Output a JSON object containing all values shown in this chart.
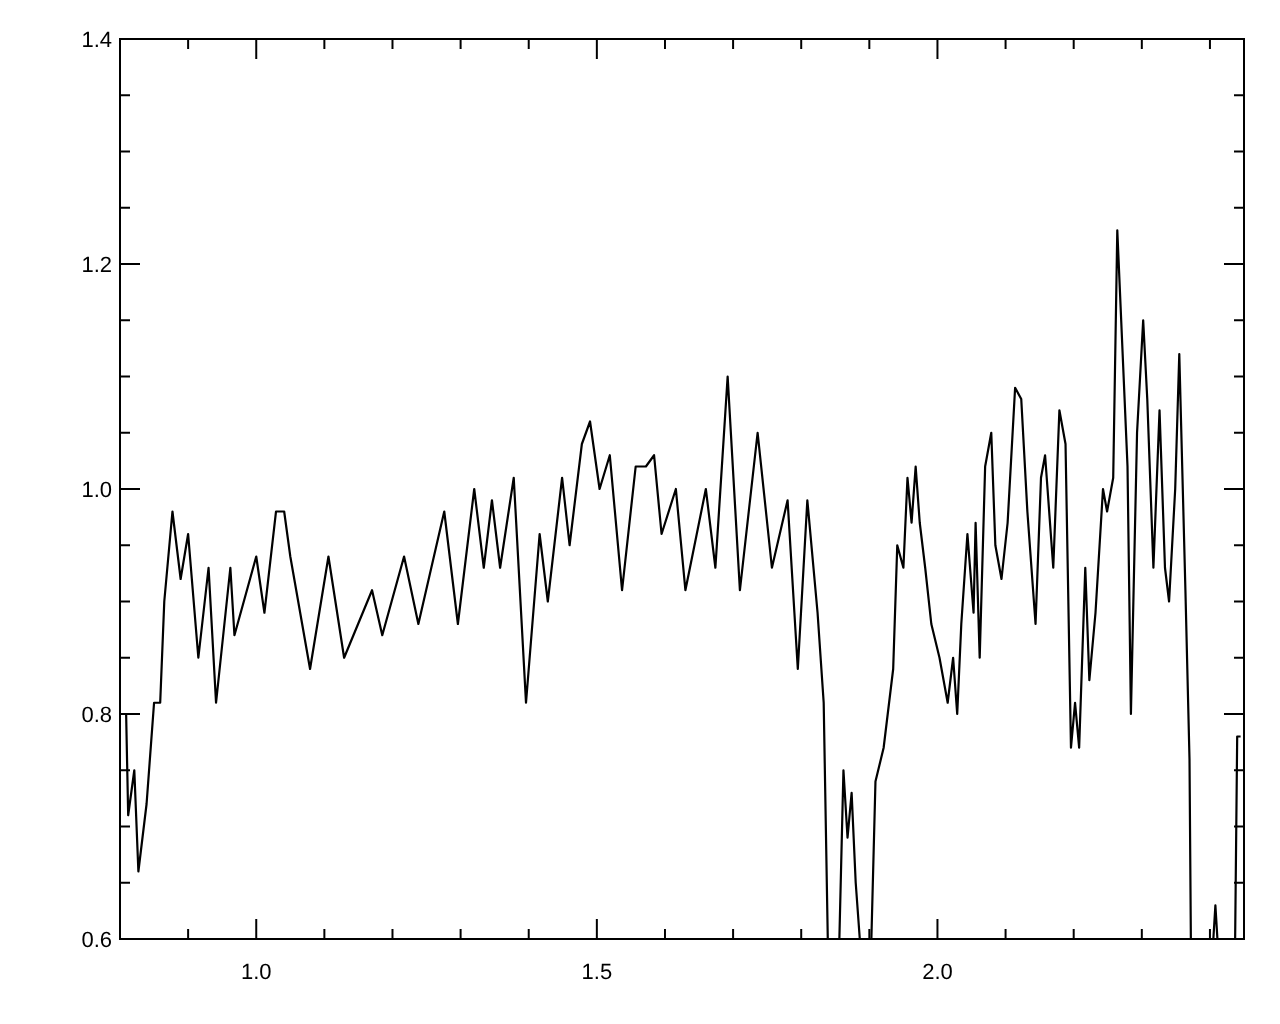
{
  "chart_data": {
    "type": "line",
    "x": [
      0.805,
      0.809,
      0.812,
      0.821,
      0.827,
      0.839,
      0.85,
      0.859,
      0.865,
      0.877,
      0.889,
      0.9,
      0.915,
      0.93,
      0.941,
      0.962,
      0.968,
      1.0,
      1.012,
      1.029,
      1.041,
      1.05,
      1.079,
      1.106,
      1.129,
      1.17,
      1.185,
      1.217,
      1.238,
      1.276,
      1.296,
      1.32,
      1.334,
      1.346,
      1.358,
      1.378,
      1.396,
      1.416,
      1.428,
      1.449,
      1.46,
      1.478,
      1.49,
      1.504,
      1.519,
      1.537,
      1.557,
      1.572,
      1.584,
      1.595,
      1.616,
      1.63,
      1.66,
      1.674,
      1.692,
      1.71,
      1.736,
      1.757,
      1.78,
      1.795,
      1.809,
      1.824,
      1.833,
      1.839,
      1.856,
      1.862,
      1.868,
      1.874,
      1.88,
      1.886,
      1.903,
      1.909,
      1.921,
      1.935,
      1.941,
      1.95,
      1.956,
      1.962,
      1.968,
      1.974,
      1.982,
      1.991,
      2.003,
      2.015,
      2.023,
      2.029,
      2.035,
      2.044,
      2.053,
      2.056,
      2.062,
      2.07,
      2.079,
      2.085,
      2.094,
      2.103,
      2.114,
      2.123,
      2.132,
      2.144,
      2.152,
      2.158,
      2.17,
      2.179,
      2.188,
      2.196,
      2.202,
      2.208,
      2.217,
      2.223,
      2.232,
      2.243,
      2.249,
      2.258,
      2.264,
      2.279,
      2.284,
      2.293,
      2.302,
      2.308,
      2.317,
      2.326,
      2.334,
      2.34,
      2.349,
      2.355,
      2.364,
      2.37,
      2.372,
      2.405,
      2.408,
      2.411,
      2.437,
      2.44,
      2.445
    ],
    "series": [
      {
        "color": "#000000",
        "values": [
          0.8,
          0.8,
          0.71,
          0.75,
          0.66,
          0.72,
          0.81,
          0.81,
          0.9,
          0.98,
          0.92,
          0.96,
          0.85,
          0.93,
          0.81,
          0.93,
          0.87,
          0.94,
          0.89,
          0.98,
          0.98,
          0.94,
          0.84,
          0.94,
          0.85,
          0.91,
          0.87,
          0.94,
          0.88,
          0.98,
          0.88,
          1.0,
          0.93,
          0.99,
          0.93,
          1.01,
          0.81,
          0.96,
          0.9,
          1.01,
          0.95,
          1.04,
          1.06,
          1.0,
          1.03,
          0.91,
          1.02,
          1.02,
          1.03,
          0.96,
          1.0,
          0.91,
          1.0,
          0.93,
          1.1,
          0.91,
          1.05,
          0.93,
          0.99,
          0.84,
          0.99,
          0.89,
          0.81,
          0.6,
          0.6,
          0.75,
          0.69,
          0.73,
          0.65,
          0.6,
          0.6,
          0.74,
          0.77,
          0.84,
          0.95,
          0.93,
          1.01,
          0.97,
          1.02,
          0.97,
          0.93,
          0.88,
          0.85,
          0.81,
          0.85,
          0.8,
          0.88,
          0.96,
          0.89,
          0.97,
          0.85,
          1.02,
          1.05,
          0.95,
          0.92,
          0.97,
          1.09,
          1.08,
          0.98,
          0.88,
          1.01,
          1.03,
          0.93,
          1.07,
          1.04,
          0.77,
          0.81,
          0.77,
          0.93,
          0.83,
          0.89,
          1.0,
          0.98,
          1.01,
          1.23,
          1.02,
          0.8,
          1.05,
          1.15,
          1.08,
          0.93,
          1.07,
          0.93,
          0.9,
          1.0,
          1.12,
          0.91,
          0.76,
          0.6,
          0.6,
          0.63,
          0.6,
          0.6,
          0.78,
          0.78
        ]
      }
    ],
    "xlim": [
      0.8,
      2.45
    ],
    "xticks": [
      {
        "value": 0.9,
        "label": null
      },
      {
        "value": 1.0,
        "label": "1.0"
      },
      {
        "value": 1.1,
        "label": null
      },
      {
        "value": 1.2,
        "label": null
      },
      {
        "value": 1.3,
        "label": null
      },
      {
        "value": 1.4,
        "label": null
      },
      {
        "value": 1.5,
        "label": "1.5"
      },
      {
        "value": 1.6,
        "label": null
      },
      {
        "value": 1.7,
        "label": null
      },
      {
        "value": 1.8,
        "label": null
      },
      {
        "value": 1.9,
        "label": null
      },
      {
        "value": 2.0,
        "label": "2.0"
      },
      {
        "value": 2.1,
        "label": null
      },
      {
        "value": 2.2,
        "label": null
      },
      {
        "value": 2.3,
        "label": null
      },
      {
        "value": 2.4,
        "label": null
      }
    ],
    "ylim": [
      0.6,
      1.4
    ],
    "yticks": [
      0.6,
      {
        "value": 0.65,
        "label": null
      },
      {
        "value": 0.7,
        "label": null
      },
      {
        "value": 0.75,
        "label": null
      },
      0.8,
      {
        "value": 0.85,
        "label": null
      },
      {
        "value": 0.9,
        "label": null
      },
      {
        "value": 0.95,
        "label": null
      },
      {
        "value": 1.0,
        "label": "1.0"
      },
      {
        "value": 1.05,
        "label": null
      },
      {
        "value": 1.1,
        "label": null
      },
      {
        "value": 1.15,
        "label": null
      },
      1.2,
      {
        "value": 1.25,
        "label": null
      },
      {
        "value": 1.3,
        "label": null
      },
      {
        "value": 1.35,
        "label": null
      },
      1.4
    ],
    "grid": false,
    "marker": "none",
    "line_style": "solid"
  }
}
